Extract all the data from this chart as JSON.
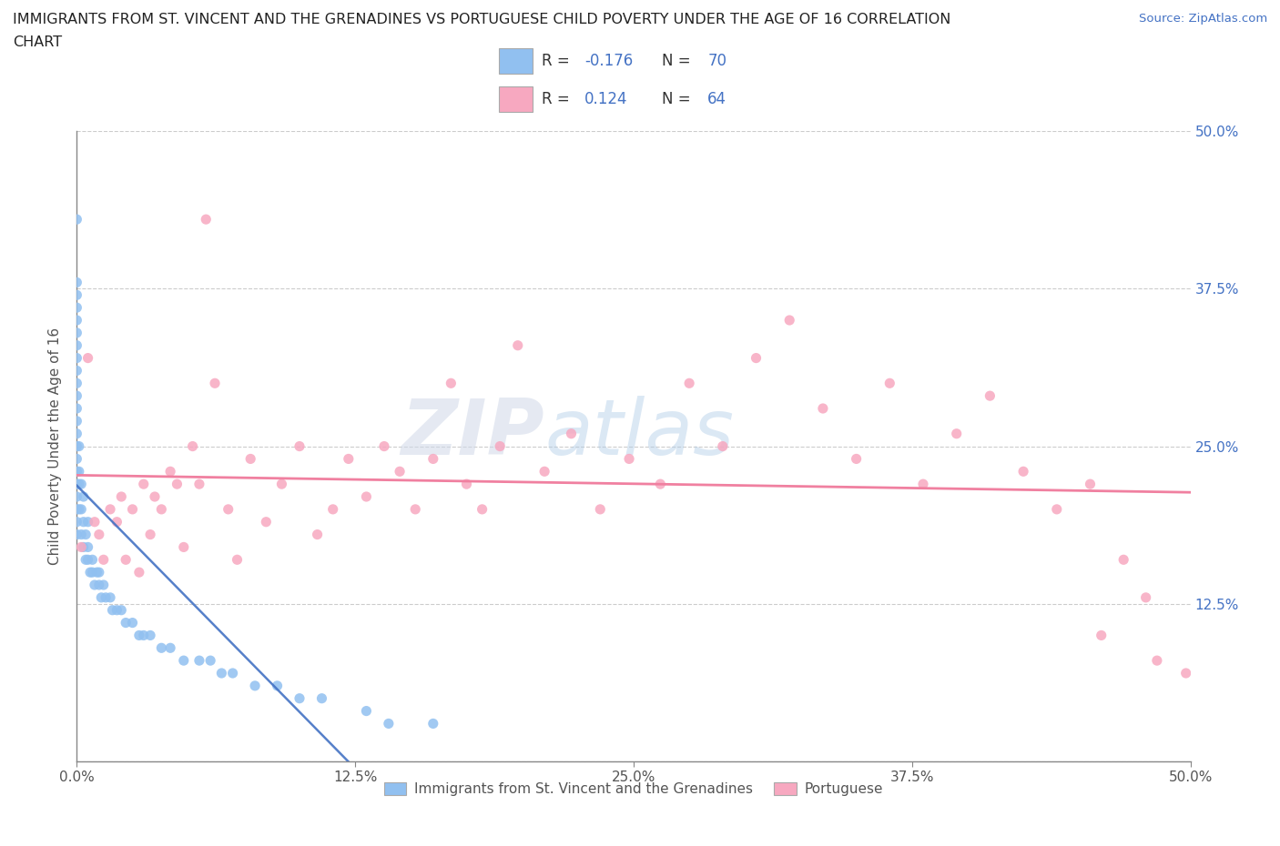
{
  "title_line1": "IMMIGRANTS FROM ST. VINCENT AND THE GRENADINES VS PORTUGUESE CHILD POVERTY UNDER THE AGE OF 16 CORRELATION",
  "title_line2": "CHART",
  "source_text": "Source: ZipAtlas.com",
  "ylabel": "Child Poverty Under the Age of 16",
  "xlim": [
    0.0,
    0.5
  ],
  "ylim": [
    0.0,
    0.5
  ],
  "xtick_labels": [
    "0.0%",
    "12.5%",
    "25.0%",
    "37.5%",
    "50.0%"
  ],
  "xtick_vals": [
    0.0,
    0.125,
    0.25,
    0.375,
    0.5
  ],
  "ytick_labels": [
    "",
    "12.5%",
    "25.0%",
    "37.5%",
    "50.0%"
  ],
  "ytick_vals": [
    0.0,
    0.125,
    0.25,
    0.375,
    0.5
  ],
  "blue_R": -0.176,
  "blue_N": 70,
  "pink_R": 0.124,
  "pink_N": 64,
  "blue_color": "#91c0f0",
  "pink_color": "#f7a8c0",
  "blue_line_color": "#4472c4",
  "pink_line_color": "#f080a0",
  "right_tick_color": "#4472c4",
  "watermark_zip": "ZIP",
  "watermark_atlas": "atlas",
  "legend_label_blue": "Immigrants from St. Vincent and the Grenadines",
  "legend_label_pink": "Portuguese",
  "blue_scatter_x": [
    0.0,
    0.0,
    0.0,
    0.0,
    0.0,
    0.0,
    0.0,
    0.0,
    0.0,
    0.0,
    0.0,
    0.0,
    0.0,
    0.0,
    0.0,
    0.0,
    0.0,
    0.0,
    0.0,
    0.0,
    0.0,
    0.0,
    0.001,
    0.001,
    0.001,
    0.001,
    0.002,
    0.002,
    0.002,
    0.003,
    0.003,
    0.003,
    0.004,
    0.004,
    0.005,
    0.005,
    0.005,
    0.006,
    0.007,
    0.007,
    0.008,
    0.009,
    0.01,
    0.01,
    0.011,
    0.012,
    0.013,
    0.015,
    0.016,
    0.018,
    0.02,
    0.022,
    0.025,
    0.028,
    0.03,
    0.033,
    0.038,
    0.042,
    0.048,
    0.055,
    0.06,
    0.065,
    0.07,
    0.08,
    0.09,
    0.1,
    0.11,
    0.13,
    0.14,
    0.16
  ],
  "blue_scatter_y": [
    0.43,
    0.38,
    0.37,
    0.36,
    0.35,
    0.34,
    0.33,
    0.32,
    0.31,
    0.3,
    0.29,
    0.28,
    0.27,
    0.26,
    0.25,
    0.24,
    0.23,
    0.22,
    0.21,
    0.2,
    0.19,
    0.18,
    0.2,
    0.22,
    0.23,
    0.25,
    0.18,
    0.2,
    0.22,
    0.17,
    0.19,
    0.21,
    0.16,
    0.18,
    0.16,
    0.17,
    0.19,
    0.15,
    0.15,
    0.16,
    0.14,
    0.15,
    0.14,
    0.15,
    0.13,
    0.14,
    0.13,
    0.13,
    0.12,
    0.12,
    0.12,
    0.11,
    0.11,
    0.1,
    0.1,
    0.1,
    0.09,
    0.09,
    0.08,
    0.08,
    0.08,
    0.07,
    0.07,
    0.06,
    0.06,
    0.05,
    0.05,
    0.04,
    0.03,
    0.03
  ],
  "pink_scatter_x": [
    0.002,
    0.005,
    0.008,
    0.01,
    0.012,
    0.015,
    0.018,
    0.02,
    0.022,
    0.025,
    0.028,
    0.03,
    0.033,
    0.035,
    0.038,
    0.042,
    0.045,
    0.048,
    0.052,
    0.055,
    0.058,
    0.062,
    0.068,
    0.072,
    0.078,
    0.085,
    0.092,
    0.1,
    0.108,
    0.115,
    0.122,
    0.13,
    0.138,
    0.145,
    0.152,
    0.16,
    0.168,
    0.175,
    0.182,
    0.19,
    0.198,
    0.21,
    0.222,
    0.235,
    0.248,
    0.262,
    0.275,
    0.29,
    0.305,
    0.32,
    0.335,
    0.35,
    0.365,
    0.38,
    0.395,
    0.41,
    0.425,
    0.44,
    0.455,
    0.47,
    0.485,
    0.498,
    0.48,
    0.46
  ],
  "pink_scatter_y": [
    0.17,
    0.32,
    0.19,
    0.18,
    0.16,
    0.2,
    0.19,
    0.21,
    0.16,
    0.2,
    0.15,
    0.22,
    0.18,
    0.21,
    0.2,
    0.23,
    0.22,
    0.17,
    0.25,
    0.22,
    0.43,
    0.3,
    0.2,
    0.16,
    0.24,
    0.19,
    0.22,
    0.25,
    0.18,
    0.2,
    0.24,
    0.21,
    0.25,
    0.23,
    0.2,
    0.24,
    0.3,
    0.22,
    0.2,
    0.25,
    0.33,
    0.23,
    0.26,
    0.2,
    0.24,
    0.22,
    0.3,
    0.25,
    0.32,
    0.35,
    0.28,
    0.24,
    0.3,
    0.22,
    0.26,
    0.29,
    0.23,
    0.2,
    0.22,
    0.16,
    0.08,
    0.07,
    0.13,
    0.1
  ]
}
